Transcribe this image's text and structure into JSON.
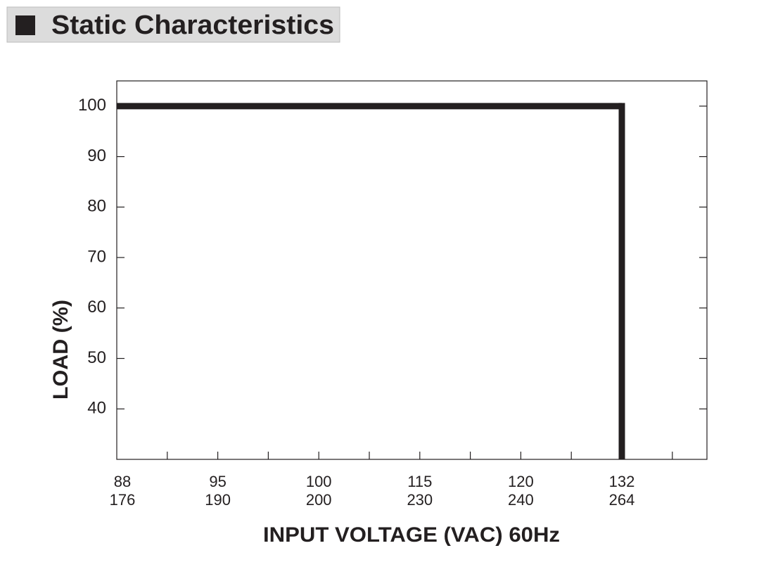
{
  "chart_data": {
    "type": "line",
    "title": "Static Characteristics",
    "x_label": "INPUT VOLTAGE (VAC) 60Hz",
    "y_label": "LOAD (%)",
    "categories": [
      [
        "88",
        "176"
      ],
      [
        "95",
        "190"
      ],
      [
        "100",
        "200"
      ],
      [
        "115",
        "230"
      ],
      [
        "120",
        "240"
      ],
      [
        "132",
        "264"
      ]
    ],
    "series": [
      {
        "color": "#231f20",
        "values": [
          100,
          100,
          100,
          100,
          100,
          100
        ]
      }
    ],
    "ylim": [
      30,
      105
    ],
    "yticks": [
      40,
      50,
      60,
      70,
      80,
      90,
      100
    ]
  }
}
